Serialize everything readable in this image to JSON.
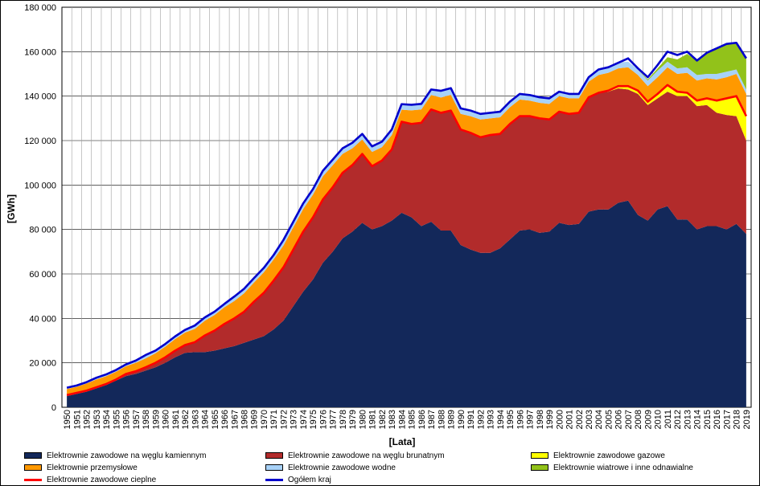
{
  "chart_data": {
    "type": "area",
    "ylabel": "[GWh]",
    "xlabel": "[Lata]",
    "ylim": [
      0,
      180000
    ],
    "yticks": [
      0,
      20000,
      40000,
      60000,
      80000,
      100000,
      120000,
      140000,
      160000,
      180000
    ],
    "ytick_labels": [
      "0",
      "20 000",
      "40 000",
      "60 000",
      "80 000",
      "100 000",
      "120 000",
      "140 000",
      "160 000",
      "180 000"
    ],
    "grid": true,
    "legend_position": "bottom",
    "years": [
      1950,
      1951,
      1952,
      1953,
      1954,
      1955,
      1956,
      1957,
      1958,
      1959,
      1960,
      1961,
      1962,
      1963,
      1964,
      1965,
      1966,
      1967,
      1968,
      1969,
      1970,
      1971,
      1972,
      1973,
      1974,
      1975,
      1976,
      1977,
      1978,
      1979,
      1980,
      1981,
      1982,
      1983,
      1984,
      1985,
      1986,
      1987,
      1988,
      1989,
      1990,
      1991,
      1992,
      1993,
      1994,
      1995,
      1996,
      1997,
      1998,
      1999,
      2000,
      2001,
      2002,
      2003,
      2004,
      2005,
      2006,
      2007,
      2008,
      2009,
      2010,
      2011,
      2012,
      2013,
      2014,
      2015,
      2016,
      2017,
      2018,
      2019
    ],
    "series": [
      {
        "name": "Elektrownie zawodowe na węglu kamiennym",
        "color": "#13285a",
        "kind": "area",
        "values": [
          5000,
          6000,
          7000,
          8500,
          10000,
          12000,
          14000,
          15000,
          16500,
          18000,
          20000,
          22500,
          24500,
          24800,
          24800,
          25500,
          26500,
          27500,
          29000,
          30500,
          32000,
          35000,
          39000,
          45500,
          52000,
          57500,
          65000,
          70000,
          76000,
          79000,
          83000,
          80000,
          81500,
          84000,
          87500,
          85500,
          81500,
          83500,
          79500,
          79500,
          73000,
          71000,
          69500,
          69500,
          71500,
          75500,
          79500,
          80000,
          78500,
          79000,
          83000,
          82000,
          82500,
          88000,
          89000,
          89000,
          92000,
          93000,
          86500,
          84000,
          89000,
          90500,
          84500,
          84500,
          80000,
          81500,
          81500,
          80000,
          82500,
          78000
        ]
      },
      {
        "name": "Elektrownie zawodowe na węglu brunatnym",
        "color": "#b22b2b",
        "kind": "area",
        "values": [
          500,
          500,
          500,
          500,
          500,
          500,
          1000,
          1200,
          1500,
          2000,
          2500,
          3000,
          3500,
          4500,
          7500,
          9000,
          11000,
          12500,
          14000,
          17000,
          19500,
          22000,
          24000,
          25500,
          27000,
          28000,
          28500,
          29000,
          29500,
          30000,
          31000,
          28500,
          29500,
          32000,
          41000,
          42000,
          46500,
          50500,
          53000,
          54000,
          52000,
          52500,
          52000,
          53000,
          51500,
          52000,
          51500,
          51000,
          51500,
          50500,
          50000,
          50000,
          50000,
          51500,
          52500,
          53000,
          51500,
          50000,
          54500,
          52000,
          50000,
          51500,
          55500,
          55500,
          55500,
          54500,
          51000,
          51500,
          48500,
          42000
        ]
      },
      {
        "name": "Elektrownie zawodowe gazowe",
        "color": "#ffff00",
        "kind": "area",
        "values": [
          0,
          0,
          0,
          0,
          0,
          0,
          0,
          0,
          0,
          0,
          0,
          0,
          0,
          0,
          0,
          0,
          0,
          0,
          0,
          0,
          0,
          0,
          0,
          0,
          0,
          0,
          0,
          0,
          0,
          0,
          0,
          0,
          0,
          0,
          0,
          0,
          0,
          0,
          0,
          0,
          0,
          0,
          0,
          0,
          0,
          0,
          0,
          0,
          0,
          0,
          0,
          0,
          0,
          0,
          0,
          500,
          1000,
          1500,
          1500,
          1500,
          2000,
          3000,
          2000,
          1500,
          2500,
          3000,
          5500,
          7500,
          9000,
          11000
        ]
      },
      {
        "name": "Elektrownie przemysłowe",
        "color": "#ff9900",
        "kind": "area",
        "values": [
          2700,
          2700,
          3200,
          3500,
          3500,
          3500,
          3500,
          3800,
          4000,
          4300,
          4800,
          5200,
          5600,
          6000,
          6600,
          7000,
          7500,
          7800,
          8300,
          8600,
          9200,
          9500,
          9800,
          10000,
          10200,
          10200,
          10400,
          9900,
          8500,
          7500,
          6500,
          6400,
          6000,
          6500,
          5400,
          6100,
          6000,
          6500,
          6900,
          7100,
          7000,
          7500,
          8000,
          7500,
          7500,
          7500,
          7500,
          7000,
          7000,
          7000,
          7000,
          7000,
          6500,
          7000,
          8000,
          8000,
          8000,
          8500,
          7000,
          7000,
          7500,
          8000,
          8000,
          9000,
          9000,
          9000,
          9500,
          9500,
          10000,
          10000
        ]
      },
      {
        "name": "Elektrownie zawodowe wodne",
        "color": "#a8d2f8",
        "kind": "area",
        "values": [
          600,
          600,
          600,
          800,
          800,
          800,
          800,
          1000,
          1000,
          1200,
          1200,
          1200,
          1200,
          1500,
          1500,
          1500,
          1500,
          2000,
          2000,
          2000,
          2000,
          2000,
          2500,
          2500,
          2500,
          2500,
          2500,
          2500,
          2500,
          2500,
          2500,
          2500,
          2500,
          2500,
          2500,
          2500,
          2500,
          2500,
          3000,
          3000,
          2500,
          2500,
          2500,
          2500,
          2500,
          2500,
          2500,
          2500,
          2500,
          2500,
          2000,
          2000,
          2000,
          2000,
          2500,
          2500,
          2500,
          2500,
          2500,
          2500,
          3000,
          2500,
          2500,
          2500,
          2500,
          2000,
          2500,
          2500,
          2000,
          2000
        ]
      },
      {
        "name": "Elektrownie wiatrowe i inne odnawialne",
        "color": "#92c21a",
        "kind": "area",
        "values": [
          0,
          0,
          0,
          0,
          0,
          0,
          0,
          0,
          0,
          0,
          0,
          0,
          0,
          0,
          0,
          0,
          0,
          0,
          0,
          0,
          0,
          0,
          0,
          0,
          0,
          0,
          0,
          0,
          0,
          0,
          0,
          0,
          0,
          0,
          0,
          0,
          0,
          0,
          0,
          0,
          0,
          0,
          0,
          0,
          0,
          0,
          0,
          0,
          0,
          0,
          0,
          0,
          0,
          0,
          0,
          0,
          0,
          0,
          0,
          500,
          1000,
          2000,
          4000,
          6000,
          6500,
          9500,
          11500,
          12500,
          12000,
          14000
        ]
      },
      {
        "name": "Elektrownie zawodowe cieplne",
        "color": "#ff0000",
        "kind": "line",
        "values": [
          5500,
          6500,
          7500,
          9000,
          10500,
          12500,
          15000,
          16200,
          18000,
          20000,
          22500,
          25500,
          28000,
          29300,
          32300,
          34500,
          37500,
          40000,
          43000,
          47500,
          51500,
          57000,
          63000,
          71000,
          79000,
          85500,
          93500,
          99000,
          105500,
          109000,
          114000,
          108500,
          111000,
          116000,
          128500,
          127500,
          128000,
          134000,
          132500,
          133500,
          125000,
          123500,
          121500,
          122500,
          123000,
          127500,
          131000,
          131000,
          130000,
          129500,
          133000,
          132000,
          132500,
          139500,
          141500,
          142500,
          144500,
          144500,
          142500,
          137500,
          141000,
          145000,
          142000,
          141500,
          138000,
          139000,
          138000,
          139000,
          140000,
          131000
        ]
      },
      {
        "name": "Ogółem kraj",
        "color": "#0000cc",
        "kind": "line",
        "values": [
          8800,
          9800,
          11300,
          13300,
          14800,
          16800,
          19300,
          21000,
          23500,
          25500,
          28500,
          31900,
          34800,
          36800,
          40400,
          43000,
          46500,
          49800,
          53300,
          58100,
          62700,
          68500,
          75300,
          83500,
          91700,
          98200,
          106400,
          111400,
          116500,
          119000,
          123000,
          117400,
          119500,
          125000,
          136400,
          136100,
          136500,
          143000,
          142400,
          143600,
          134500,
          133500,
          132000,
          132500,
          133000,
          137500,
          141000,
          140500,
          139500,
          139000,
          142000,
          141000,
          141000,
          148500,
          152000,
          153000,
          155000,
          157000,
          152500,
          148500,
          154000,
          160000,
          158500,
          160000,
          156000,
          159500,
          161500,
          163500,
          164000,
          157000
        ]
      }
    ]
  },
  "legend": [
    "Elektrownie zawodowe na węglu kamiennym",
    "Elektrownie zawodowe na węglu brunatnym",
    "Elektrownie zawodowe gazowe",
    "Elektrownie przemysłowe",
    "Elektrownie zawodowe wodne",
    "Elektrownie wiatrowe i inne odnawialne",
    "Elektrownie zawodowe cieplne",
    "Ogółem kraj"
  ],
  "colors": {
    "coal": "#13285a",
    "lignite": "#b22b2b",
    "gas": "#ffff00",
    "industrial": "#ff9900",
    "hydro": "#a8d2f8",
    "wind": "#92c21a",
    "thermal": "#ff0000",
    "total": "#0000cc"
  }
}
